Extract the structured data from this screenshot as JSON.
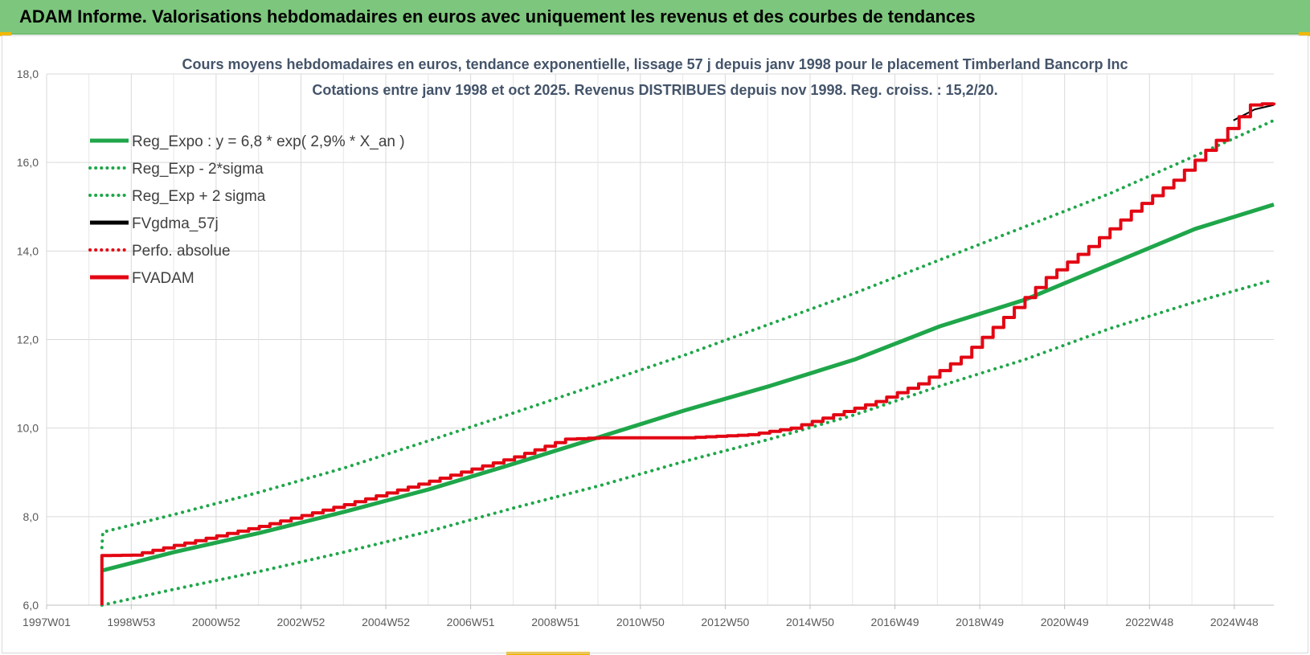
{
  "banner": {
    "title": "ADAM Informe. Valorisations hebdomadaires en euros avec uniquement les revenus et des courbes de tendances"
  },
  "colors": {
    "banner": "#7dc67d",
    "green": "#1fa64a",
    "red": "#e30613",
    "black": "#000000",
    "accent": "#f2b800"
  },
  "chart_data": {
    "type": "line",
    "title": "Cours moyens hebdomadaires en euros, tendance exponentielle, lissage 57 j depuis janv 1998 pour le placement Timberland Bancorp Inc",
    "subtitle": "Cotations entre janv 1998 et oct 2025. Revenus DISTRIBUES depuis nov 1998. Reg. croiss. : 15,2/20.",
    "xlabel": "",
    "ylabel": "",
    "ylim": [
      6.0,
      18.0
    ],
    "xlim": [
      1997.0,
      2025.85
    ],
    "grid": true,
    "legend_position": "top-left",
    "y_ticks": [
      "6,0",
      "8,0",
      "10,0",
      "12,0",
      "14,0",
      "16,0",
      "18,0"
    ],
    "x_ticks": [
      "1997W01",
      "1998W53",
      "2000W52",
      "2002W52",
      "2004W52",
      "2006W51",
      "2008W51",
      "2010W50",
      "2012W50",
      "2014W50",
      "2016W49",
      "2018W49",
      "2020W49",
      "2022W48",
      "2024W48"
    ],
    "legend": [
      {
        "label": "Reg_Expo : y = 6,8 * exp( 2,9% *  X_an )",
        "color": "#1fa64a",
        "style": "solid"
      },
      {
        "label": "Reg_Exp - 2*sigma",
        "color": "#1fa64a",
        "style": "dotted"
      },
      {
        "label": "Reg_Exp + 2 sigma",
        "color": "#1fa64a",
        "style": "dotted"
      },
      {
        "label": "FVgdma_57j",
        "color": "#000000",
        "style": "solid"
      },
      {
        "label": "Perfo. absolue",
        "color": "#e30613",
        "style": "dotted"
      },
      {
        "label": "FVADAM",
        "color": "#e30613",
        "style": "solid"
      }
    ],
    "series": [
      {
        "name": "Reg_Expo : y = 6,8 * exp( 2,9% *  X_an )",
        "x": [
          1998.3,
          2000,
          2002,
          2004,
          2006,
          2008,
          2010,
          2012,
          2014,
          2016,
          2018,
          2020,
          2022,
          2024,
          2025.85
        ],
        "values": [
          6.78,
          7.2,
          7.63,
          8.11,
          8.62,
          9.2,
          9.8,
          10.4,
          10.95,
          11.55,
          12.3,
          12.9,
          13.7,
          14.5,
          15.05
        ]
      },
      {
        "name": "Reg_Exp - 2*sigma",
        "x": [
          1998.3,
          2000,
          2002,
          2004,
          2006,
          2008,
          2010,
          2012,
          2014,
          2016,
          2018,
          2020,
          2022,
          2024,
          2025.85
        ],
        "values": [
          6.0,
          6.36,
          6.76,
          7.2,
          7.67,
          8.2,
          8.7,
          9.25,
          9.75,
          10.3,
          10.95,
          11.55,
          12.25,
          12.85,
          13.35
        ]
      },
      {
        "name": "Reg_Exp + 2 sigma",
        "x": [
          1998.3,
          1998.32,
          2000,
          2002,
          2004,
          2006,
          2008,
          2010,
          2012,
          2014,
          2016,
          2018,
          2020,
          2022,
          2024,
          2025.85
        ],
        "values": [
          7.3,
          7.65,
          8.05,
          8.55,
          9.1,
          9.72,
          10.35,
          11.0,
          11.65,
          12.35,
          13.05,
          13.8,
          14.55,
          15.3,
          16.15,
          16.95
        ]
      },
      {
        "name": "FVgdma_57j",
        "x": [
          2024.9,
          2025.4,
          2025.85
        ],
        "values": [
          16.95,
          17.2,
          17.3
        ]
      },
      {
        "name": "FVADAM",
        "x": [
          1998.3,
          1998.3,
          1999,
          2000,
          2002,
          2004,
          2006,
          2008,
          2009.2,
          2010,
          2012,
          2013.5,
          2014.5,
          2015.5,
          2016.5,
          2017.5,
          2018.5,
          2019.5,
          2020.5,
          2021.5,
          2022.5,
          2023.5,
          2024.5,
          2025.3,
          2025.85
        ],
        "values": [
          6.0,
          7.12,
          7.13,
          7.35,
          7.78,
          8.27,
          8.8,
          9.35,
          9.75,
          9.78,
          9.78,
          9.85,
          10.0,
          10.3,
          10.6,
          11.0,
          11.6,
          12.5,
          13.4,
          14.1,
          14.9,
          15.6,
          16.5,
          17.3,
          17.35
        ]
      }
    ]
  }
}
